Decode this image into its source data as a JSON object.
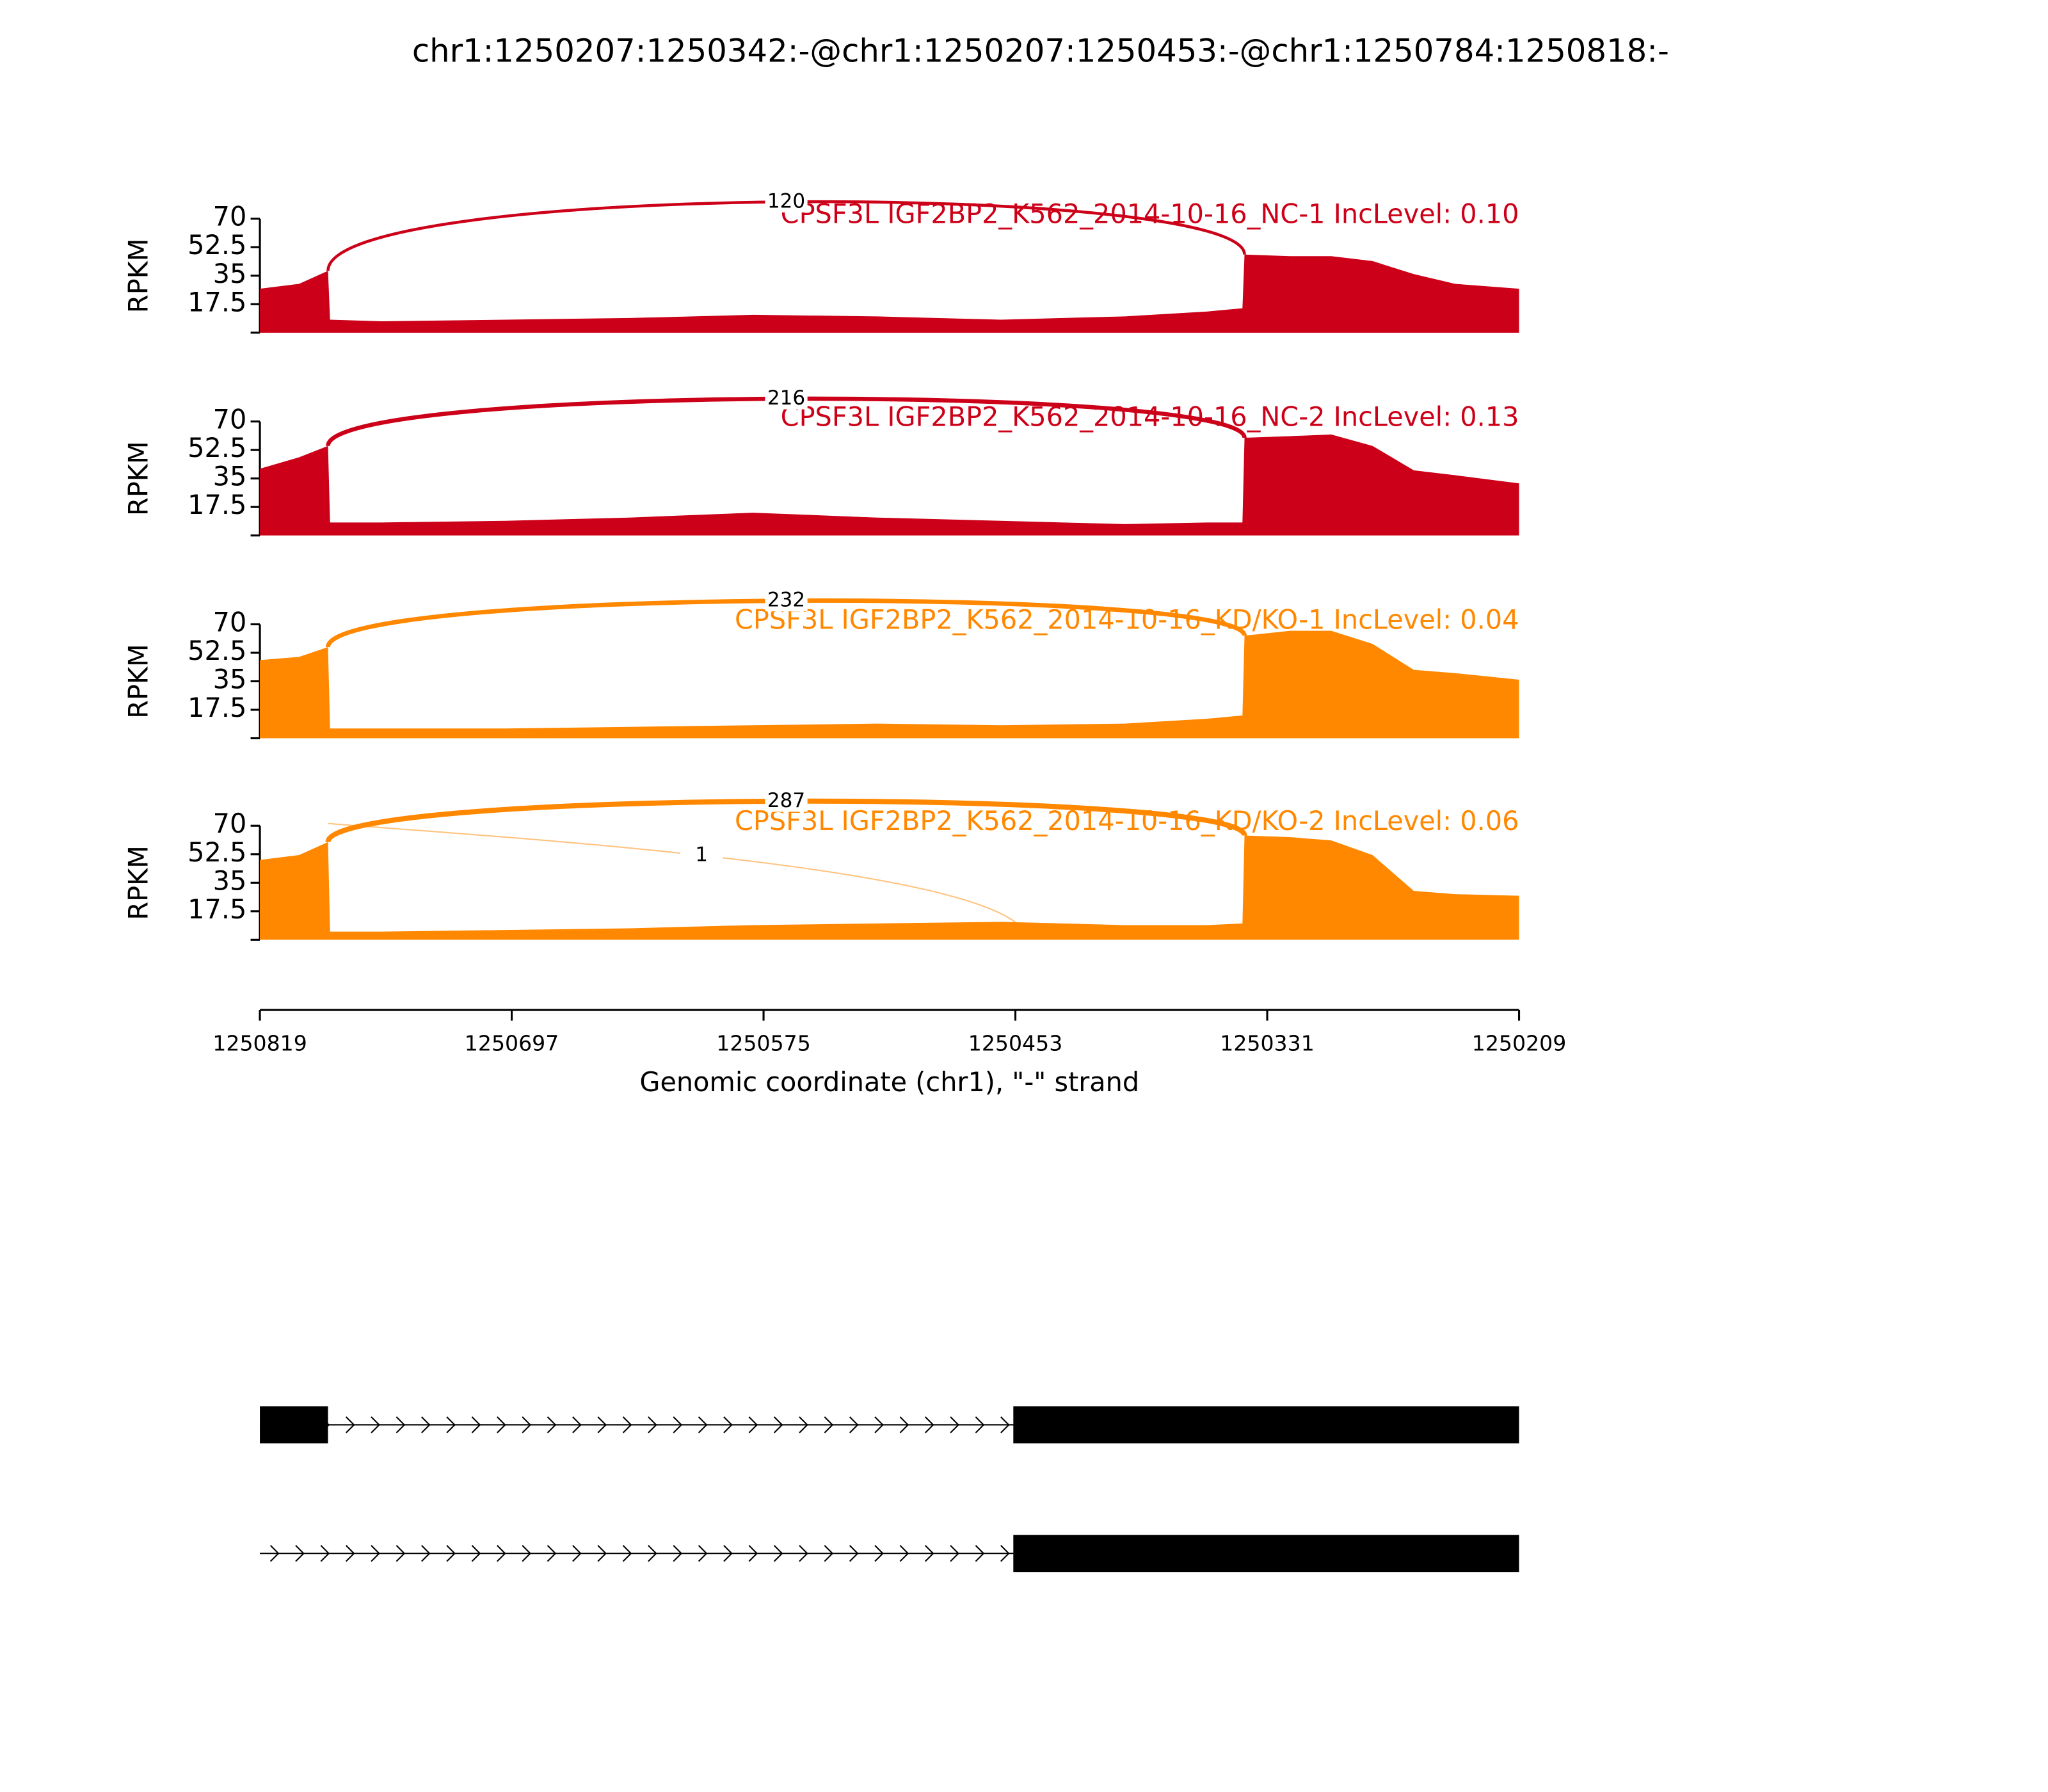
{
  "chart_data": {
    "type": "sashimi",
    "title": "chr1:1250207:1250342:-@chr1:1250207:1250453:-@chr1:1250784:1250818:-",
    "xlabel": "Genomic coordinate (chr1), \"-\" strand",
    "ylabel": "RPKM",
    "xlim": [
      1250819,
      1250209
    ],
    "xticks": [
      1250819,
      1250697,
      1250575,
      1250453,
      1250331,
      1250209
    ],
    "ylim": [
      0,
      70
    ],
    "yticks": [
      17.5,
      35,
      52.5,
      70
    ],
    "x": [
      1250819,
      1250800,
      1250786,
      1250785,
      1250760,
      1250700,
      1250640,
      1250580,
      1250520,
      1250460,
      1250400,
      1250360,
      1250343,
      1250342,
      1250320,
      1250300,
      1250280,
      1250260,
      1250240,
      1250209
    ],
    "panels": [
      {
        "name": "CPSF3L IGF2BP2_K562_2014-10-16_NC-1 IncLevel: 0.10",
        "color": "#cc0018",
        "values": [
          27,
          30,
          38,
          8,
          7,
          8,
          9,
          11,
          10,
          8,
          10,
          13,
          15,
          48,
          47,
          47,
          44,
          36,
          30,
          27
        ],
        "junctions": [
          {
            "start": 1250786,
            "end": 1250342,
            "count": 120
          }
        ]
      },
      {
        "name": "CPSF3L IGF2BP2_K562_2014-10-16_NC-2 IncLevel: 0.13",
        "color": "#cc0018",
        "values": [
          41,
          48,
          55,
          8,
          8,
          9,
          11,
          14,
          11,
          9,
          7,
          8,
          8,
          60,
          61,
          62,
          55,
          40,
          37,
          32
        ],
        "junctions": [
          {
            "start": 1250786,
            "end": 1250342,
            "count": 216
          }
        ]
      },
      {
        "name": "CPSF3L IGF2BP2_K562_2014-10-16_KD/KO-1 IncLevel: 0.04",
        "color": "#ff8800",
        "values": [
          48,
          50,
          56,
          6,
          6,
          6,
          7,
          8,
          9,
          8,
          9,
          12,
          14,
          63,
          66,
          66,
          58,
          42,
          40,
          36
        ],
        "junctions": [
          {
            "start": 1250786,
            "end": 1250342,
            "count": 232
          }
        ]
      },
      {
        "name": "CPSF3L IGF2BP2_K562_2014-10-16_KD/KO-2 IncLevel: 0.06",
        "color": "#ff8800",
        "values": [
          49,
          52,
          60,
          5,
          5,
          6,
          7,
          9,
          10,
          11,
          9,
          9,
          10,
          64,
          63,
          61,
          52,
          30,
          28,
          27
        ],
        "junctions": [
          {
            "start": 1250786,
            "end": 1250342,
            "count": 287
          },
          {
            "start": 1250786,
            "end": 1250453,
            "count": 1
          }
        ]
      }
    ],
    "transcripts": [
      {
        "start": 1250819,
        "end": 1250209,
        "exons": [
          [
            1250819,
            1250786
          ],
          [
            1250454,
            1250209
          ]
        ]
      },
      {
        "start": 1250819,
        "end": 1250209,
        "exons": [
          [
            1250454,
            1250209
          ]
        ]
      }
    ]
  }
}
